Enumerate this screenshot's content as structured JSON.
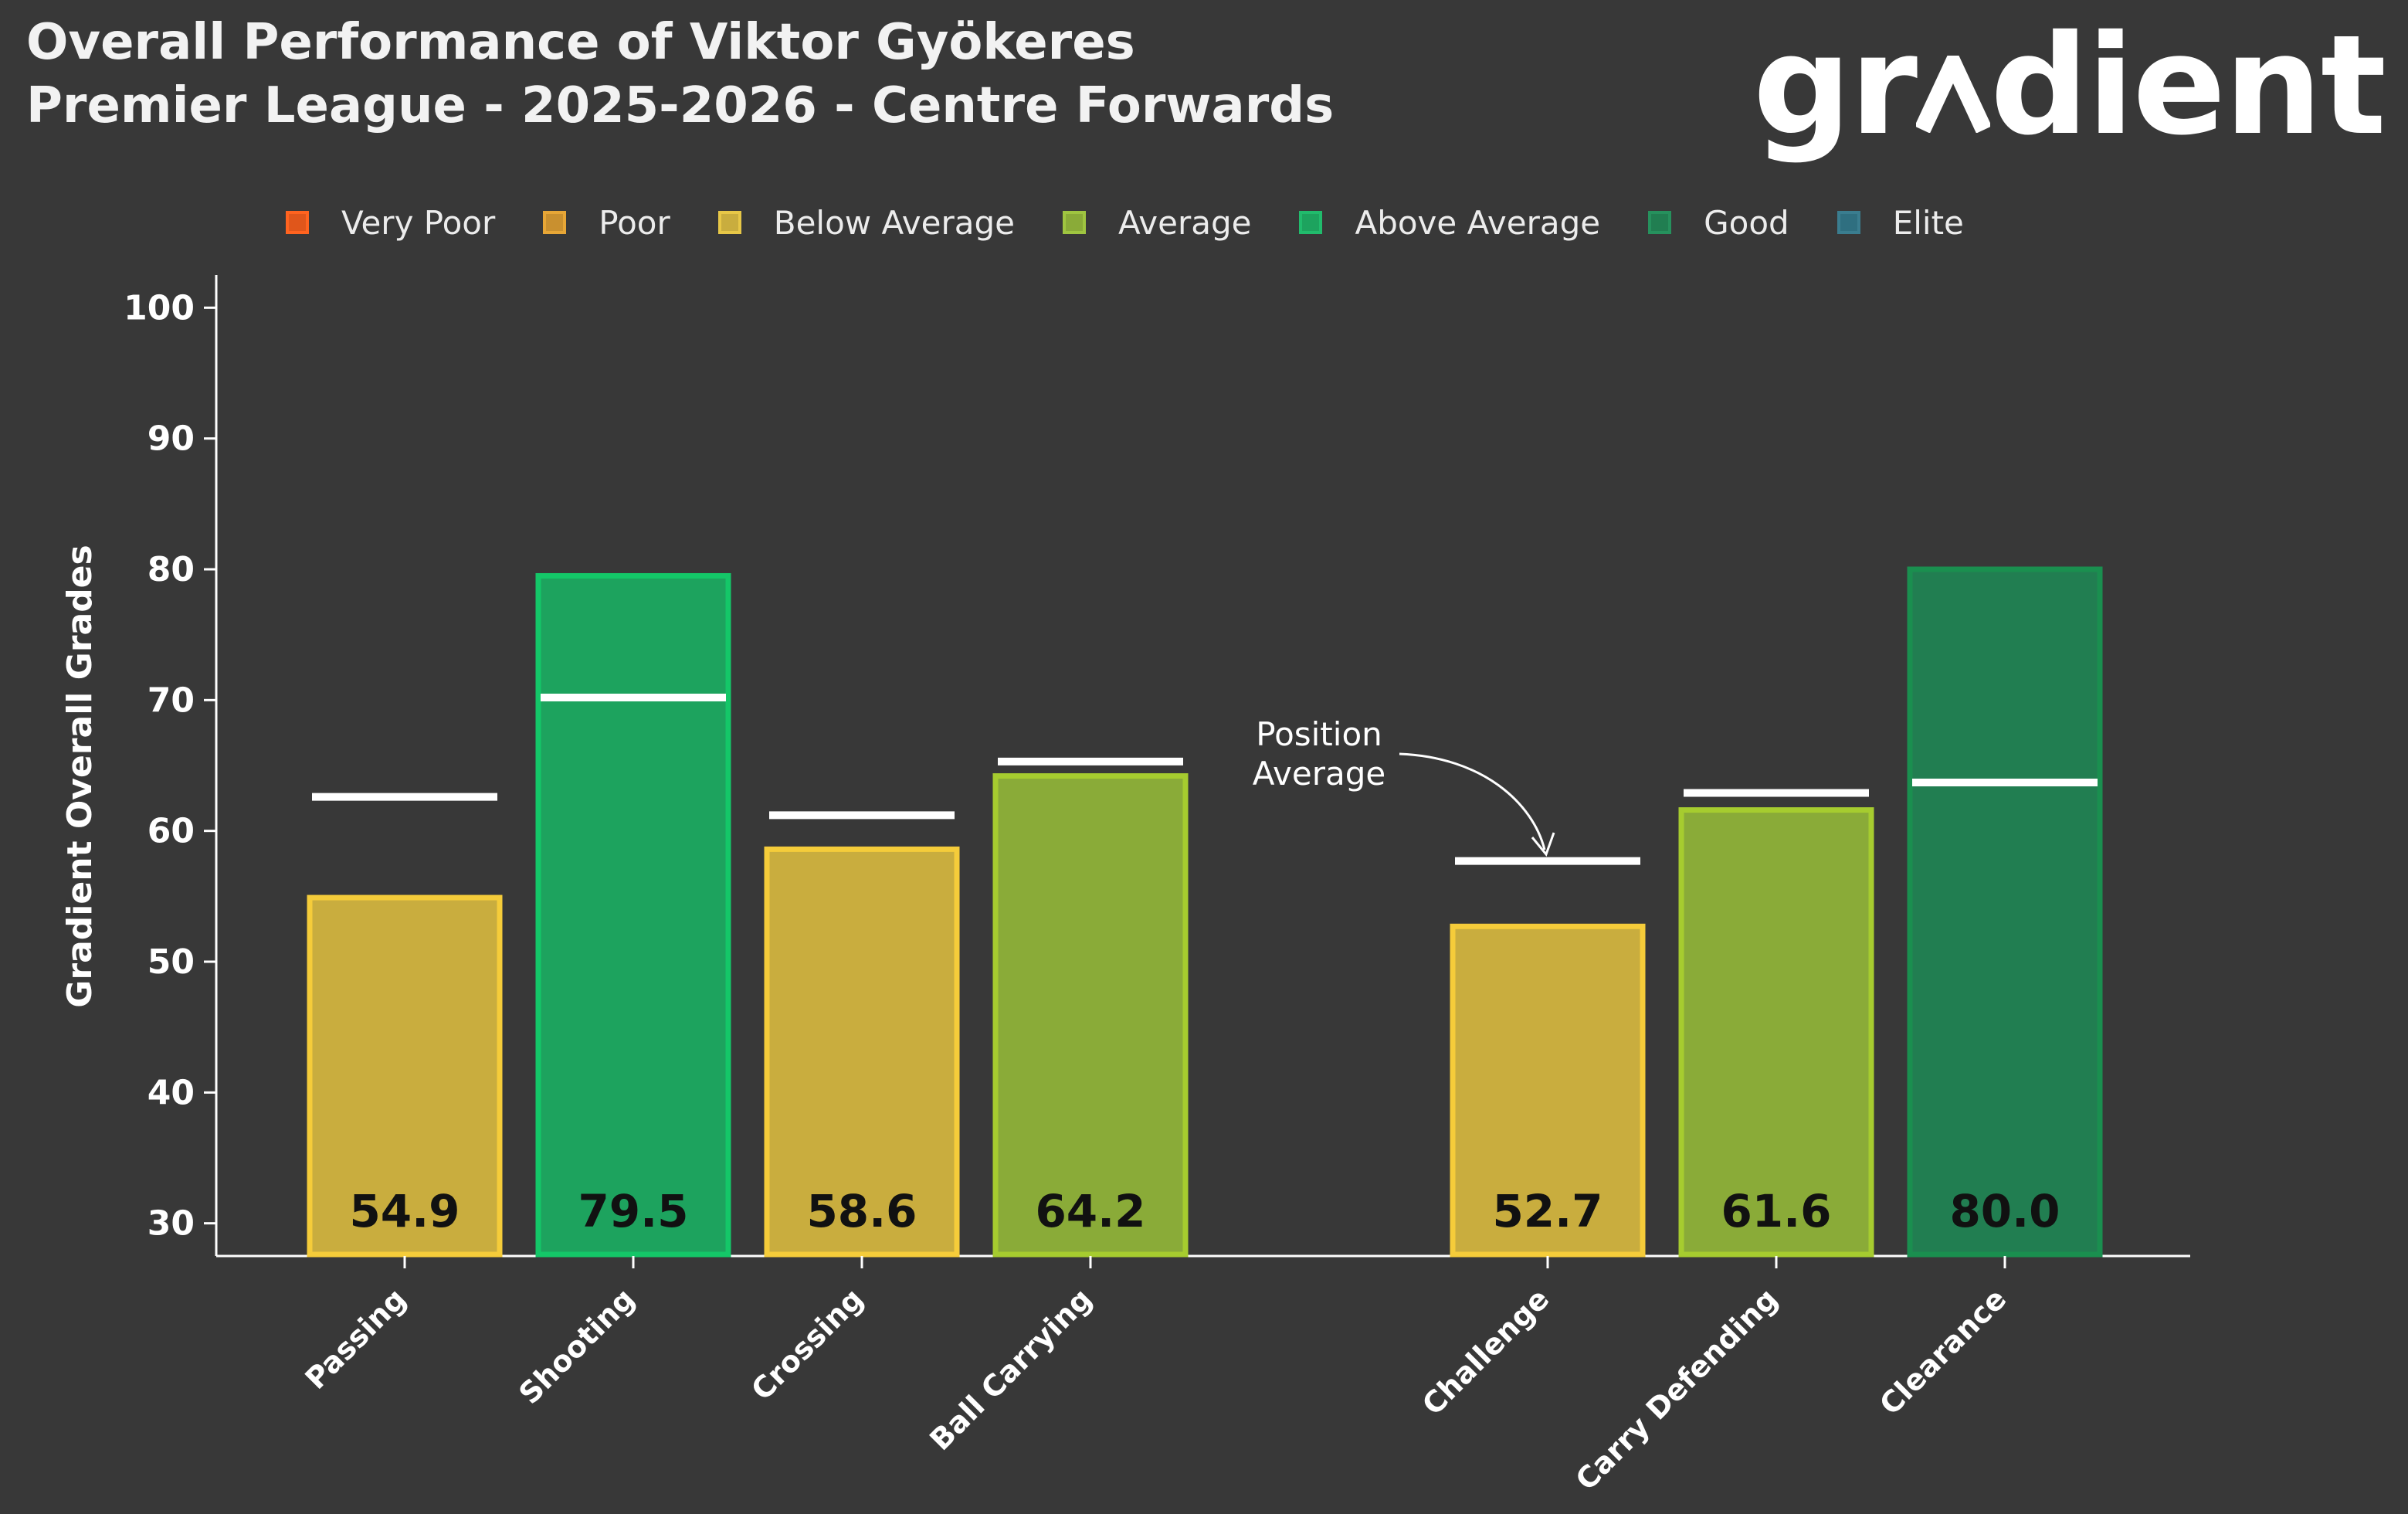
{
  "header": {
    "title_line1": "Overall Performance of Viktor Gyökeres",
    "title_line2": "Premier League - 2025-2026 - Centre Forwards",
    "logo_left": "gr",
    "logo_right": "dient"
  },
  "legend": [
    {
      "label": "Very Poor",
      "color": "#e0561b"
    },
    {
      "label": "Poor",
      "color": "#c9902f"
    },
    {
      "label": "Below Average",
      "color": "#c9ad3e"
    },
    {
      "label": "Average",
      "color": "#8aab38"
    },
    {
      "label": "Above Average",
      "color": "#1da35e"
    },
    {
      "label": "Good",
      "color": "#217e51"
    },
    {
      "label": "Elite",
      "color": "#2f6f80"
    }
  ],
  "chart_data": {
    "type": "bar",
    "title": "Overall Performance of Viktor Gyökeres",
    "subtitle": "Premier League - 2025-2026 - Centre Forwards",
    "ylabel": "Gradient Overall Grades",
    "xlabel": "",
    "ylim": [
      27.5,
      102.5
    ],
    "yticks": [
      30,
      40,
      50,
      60,
      70,
      80,
      90,
      100
    ],
    "grid": false,
    "legend_position": "top",
    "groups": [
      {
        "bars": [
          {
            "category": "Passing",
            "value": 54.9,
            "value_label": "54.9",
            "position_average": 62.6,
            "grade": "Below Average",
            "fill": "#c9ad3e",
            "stroke": "#f5cc3a"
          },
          {
            "category": "Shooting",
            "value": 79.5,
            "value_label": "79.5",
            "position_average": 70.2,
            "grade": "Above Average",
            "fill": "#1da35e",
            "stroke": "#14c768"
          },
          {
            "category": "Crossing",
            "value": 58.6,
            "value_label": "58.6",
            "position_average": 61.2,
            "grade": "Below Average",
            "fill": "#c9ad3e",
            "stroke": "#f5cc3a"
          },
          {
            "category": "Ball Carrying",
            "value": 64.2,
            "value_label": "64.2",
            "position_average": 65.3,
            "grade": "Average",
            "fill": "#8aab38",
            "stroke": "#a6cc2f"
          }
        ]
      },
      {
        "bars": [
          {
            "category": "Challenge",
            "value": 52.7,
            "value_label": "52.7",
            "position_average": 57.7,
            "grade": "Below Average",
            "fill": "#c9ad3e",
            "stroke": "#f5cc3a"
          },
          {
            "category": "Carry Defending",
            "value": 61.6,
            "value_label": "61.6",
            "position_average": 62.9,
            "grade": "Average",
            "fill": "#8aab38",
            "stroke": "#a6cc2f"
          },
          {
            "category": "Clearance",
            "value": 80.0,
            "value_label": "80.0",
            "position_average": 63.7,
            "grade": "Good",
            "fill": "#217e51",
            "stroke": "#1a8f4f"
          }
        ]
      }
    ],
    "annotation": {
      "line1": "Position",
      "line2": "Average",
      "target": "Challenge"
    }
  }
}
